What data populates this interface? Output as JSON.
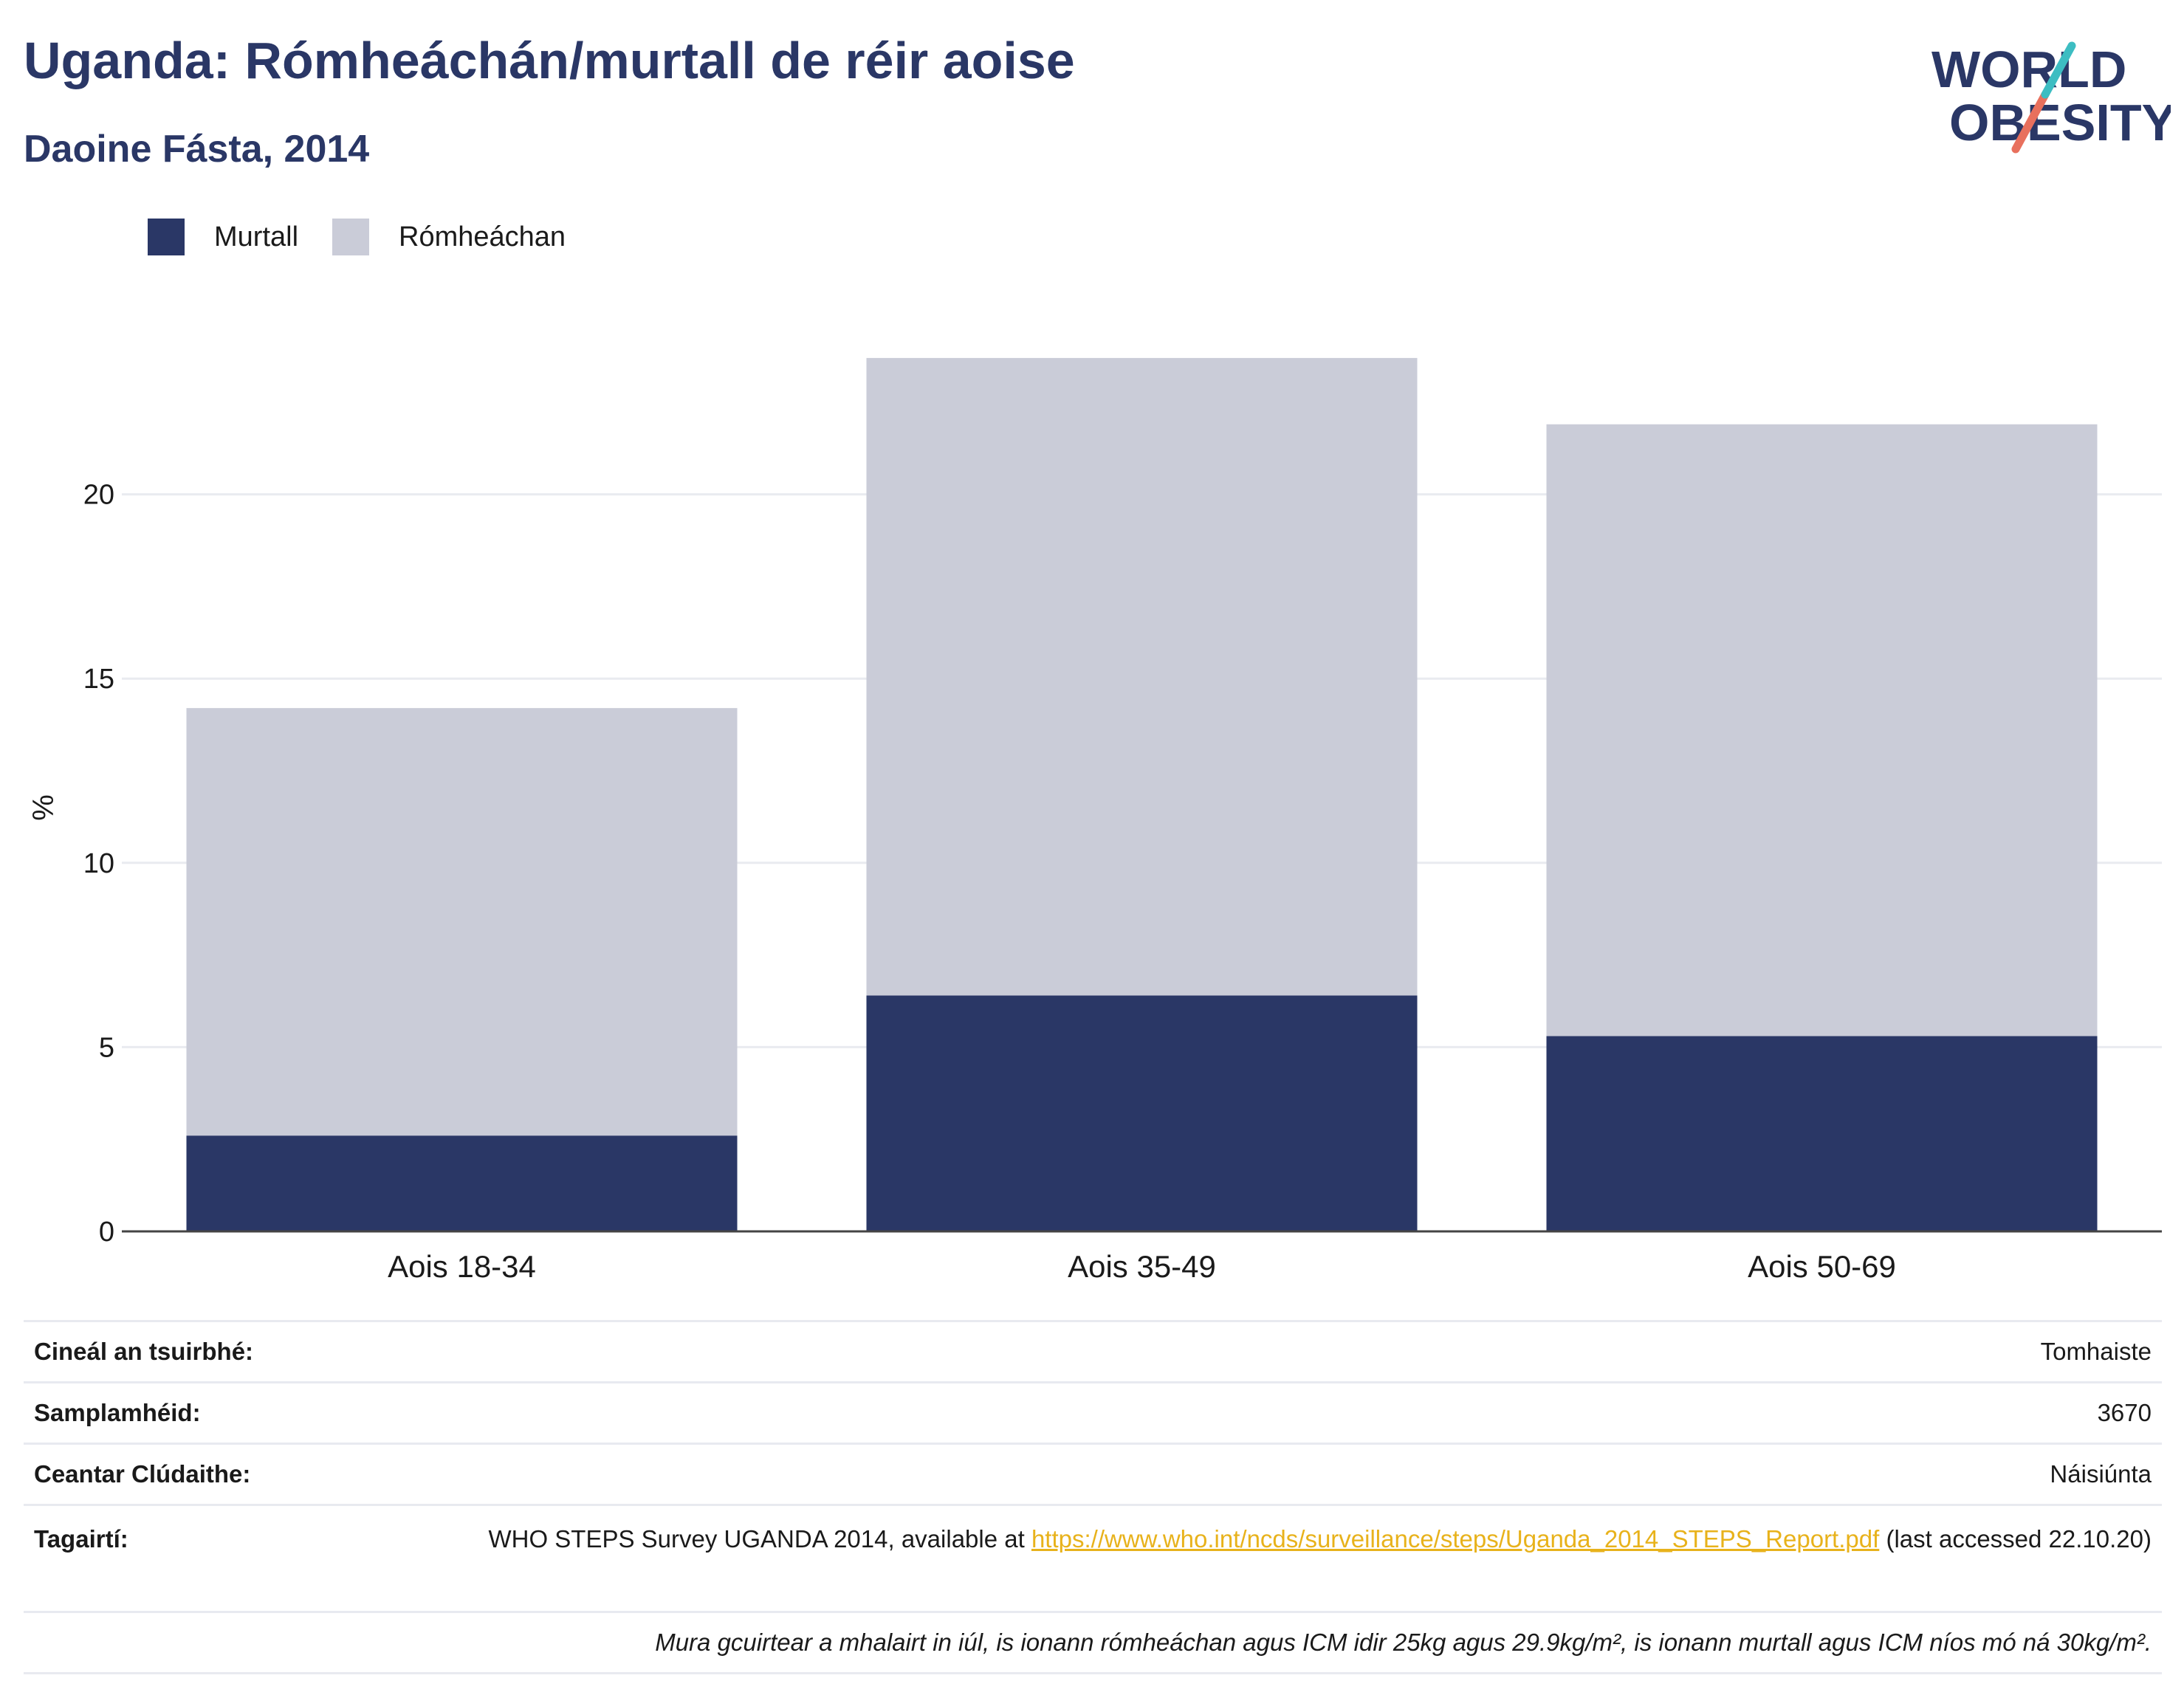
{
  "title": "Uganda: Rómheáchán/murtall de réir aoise",
  "subtitle": "Daoine Fásta, 2014",
  "logo": {
    "line1": "WORLD",
    "line2": "OBESITY"
  },
  "colors": {
    "obese": "#2a3766",
    "overweight": "#caccd8",
    "title": "#2a3766",
    "link": "#e8b21b",
    "logo_teal": "#3dbdc2",
    "logo_red": "#e8705d"
  },
  "legend": [
    {
      "label": "Murtall",
      "color": "#2a3766"
    },
    {
      "label": "Rómheáchan",
      "color": "#caccd8"
    }
  ],
  "chart_data": {
    "type": "bar",
    "stacked": true,
    "categories": [
      "Aois 18-34",
      "Aois 35-49",
      "Aois 50-69"
    ],
    "series": [
      {
        "name": "Murtall",
        "values": [
          2.6,
          6.4,
          5.3
        ]
      },
      {
        "name": "Rómheáchan",
        "values": [
          11.6,
          17.3,
          16.6
        ]
      }
    ],
    "ylabel": "%",
    "ylim": [
      0,
      25
    ],
    "yticks": [
      0,
      5,
      10,
      15,
      20
    ],
    "grid": true
  },
  "info": {
    "survey_type_label": "Cineál an tsuirbhé:",
    "survey_type_value": "Tomhaiste",
    "sample_size_label": "Samplamhéid:",
    "sample_size_value": "3670",
    "area_label": "Ceantar Clúdaithe:",
    "area_value": "Náisiúnta",
    "references_label": "Tagairtí:",
    "references_text": "WHO STEPS Survey UGANDA 2014, available at",
    "references_link": "https://www.who.int/ncds/surveillance/steps/Uganda_2014_STEPS_Report.pdf",
    "references_tail": "(last accessed 22.10.20)",
    "footnote": "Mura gcuirtear a mhalairt in iúl, is ionann rómheáchan agus ICM idir 25kg agus 29.9kg/m², is ionann murtall agus ICM níos mó ná 30kg/m²."
  }
}
